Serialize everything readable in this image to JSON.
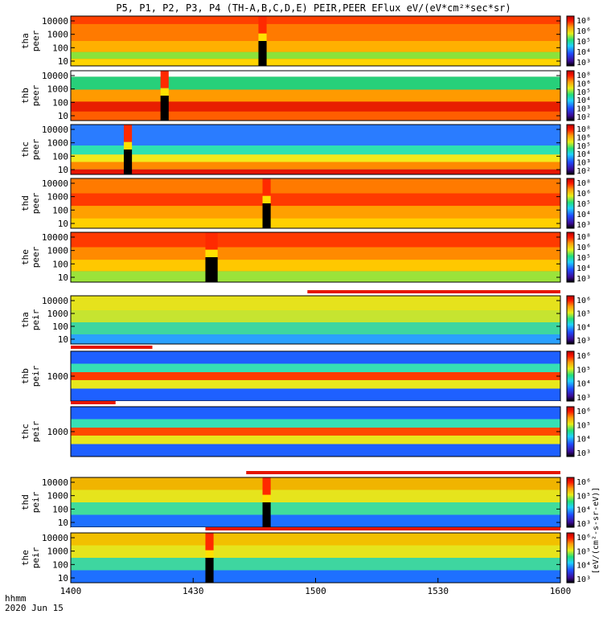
{
  "title": "P5, P1, P2, P3, P4 (TH-A,B,C,D,E) PEIR,PEER EFlux eV/(eV*cm²*sec*sr)",
  "footer": {
    "label_line1": "hhmm",
    "label_line2": "2020 Jun 15"
  },
  "colorbar_label": "[eV/(cm²-s-sr-eV)]",
  "colors": {
    "low": "#000000",
    "c1": "#3b0b96",
    "c2": "#1f4bff",
    "c3": "#1fd1ff",
    "c4": "#22e07a",
    "c5": "#e8ef17",
    "c6": "#ff9c0a",
    "c7": "#ff1a00",
    "high": "#b80000"
  },
  "chart_data": {
    "type": "heatmap",
    "x_axis": {
      "ticks": [
        "1400",
        "1430",
        "1500",
        "1530",
        "1600"
      ],
      "range_minutes": [
        0,
        120
      ]
    },
    "panels": [
      {
        "id": "tha-peer",
        "ylabel": [
          "tha",
          "peer"
        ],
        "y_log": true,
        "y_ticks": [
          "10000",
          "1000",
          "100",
          "10"
        ],
        "cbar_ticks": [
          "10⁸",
          "10⁶",
          "10⁵",
          "10⁴",
          "10³"
        ],
        "bg": "#ff7a00",
        "bands": [
          {
            "from": 0.0,
            "to": 0.16,
            "color": "#ff4000"
          },
          {
            "from": 0.5,
            "to": 0.72,
            "color": "#ffb000"
          },
          {
            "from": 0.72,
            "to": 0.86,
            "color": "#8be23a"
          },
          {
            "from": 0.86,
            "to": 1.0,
            "color": "#ffd400"
          }
        ],
        "gaps": [
          {
            "start": 46,
            "end": 48
          }
        ],
        "top_bar": null
      },
      {
        "id": "thb-peer",
        "ylabel": [
          "thb",
          "peer"
        ],
        "y_log": true,
        "y_ticks": [
          "10000",
          "1000",
          "100",
          "10"
        ],
        "cbar_ticks": [
          "10⁸",
          "10⁶",
          "10⁵",
          "10⁴",
          "10³",
          "10²"
        ],
        "bg": "#ff6a00",
        "bands": [
          {
            "from": 0.0,
            "to": 0.12,
            "color": "#ffffff"
          },
          {
            "from": 0.12,
            "to": 0.38,
            "color": "#27d07a"
          },
          {
            "from": 0.38,
            "to": 0.62,
            "color": "#ff9a00"
          },
          {
            "from": 0.62,
            "to": 0.82,
            "color": "#e81e00"
          },
          {
            "from": 0.82,
            "to": 1.0,
            "color": "#ff5e00"
          }
        ],
        "gaps": [
          {
            "start": 22,
            "end": 24
          }
        ],
        "top_bar": null
      },
      {
        "id": "thc-peer",
        "ylabel": [
          "thc",
          "peer"
        ],
        "y_log": true,
        "y_ticks": [
          "10000",
          "1000",
          "100",
          "10"
        ],
        "cbar_ticks": [
          "10⁸",
          "10⁶",
          "10⁵",
          "10⁴",
          "10³",
          "10²"
        ],
        "bg": "#1e8cff",
        "bands": [
          {
            "from": 0.0,
            "to": 0.42,
            "color": "#2a7cff"
          },
          {
            "from": 0.42,
            "to": 0.6,
            "color": "#2ee2b0"
          },
          {
            "from": 0.6,
            "to": 0.75,
            "color": "#f2ea1c"
          },
          {
            "from": 0.75,
            "to": 0.9,
            "color": "#ff8a00"
          },
          {
            "from": 0.9,
            "to": 1.0,
            "color": "#e51600"
          }
        ],
        "gaps": [
          {
            "start": 13,
            "end": 15
          }
        ],
        "top_bar": null
      },
      {
        "id": "thd-peer",
        "ylabel": [
          "thd",
          "peer"
        ],
        "y_log": true,
        "y_ticks": [
          "10000",
          "1000",
          "100",
          "10"
        ],
        "cbar_ticks": [
          "10⁸",
          "10⁶",
          "10⁵",
          "10⁴",
          "10³"
        ],
        "bg": "#ff4a00",
        "bands": [
          {
            "from": 0.0,
            "to": 0.3,
            "color": "#ff7a00"
          },
          {
            "from": 0.3,
            "to": 0.55,
            "color": "#ff3a00"
          },
          {
            "from": 0.55,
            "to": 0.8,
            "color": "#ffa000"
          },
          {
            "from": 0.8,
            "to": 1.0,
            "color": "#ffd000"
          }
        ],
        "gaps": [
          {
            "start": 47,
            "end": 49
          }
        ],
        "top_bar": null
      },
      {
        "id": "the-peer",
        "ylabel": [
          "the",
          "peer"
        ],
        "y_log": true,
        "y_ticks": [
          "10000",
          "1000",
          "100",
          "10"
        ],
        "cbar_ticks": [
          "10⁸",
          "10⁶",
          "10⁵",
          "10⁴",
          "10³"
        ],
        "bg": "#ff6000",
        "bands": [
          {
            "from": 0.0,
            "to": 0.3,
            "color": "#ff3a00"
          },
          {
            "from": 0.3,
            "to": 0.55,
            "color": "#ff8a00"
          },
          {
            "from": 0.55,
            "to": 0.78,
            "color": "#ffc800"
          },
          {
            "from": 0.78,
            "to": 1.0,
            "color": "#9be33a"
          }
        ],
        "gaps": [
          {
            "start": 33,
            "end": 36
          }
        ],
        "top_bar": null
      },
      {
        "id": "tha-peir",
        "ylabel": [
          "tha",
          "peir"
        ],
        "y_log": true,
        "y_ticks": [
          "10000",
          "1000",
          "100",
          "10"
        ],
        "cbar_ticks": [
          "10⁶",
          "10⁵",
          "10⁴",
          "10³"
        ],
        "bg": "#b6e23a",
        "bands": [
          {
            "from": 0.0,
            "to": 0.3,
            "color": "#e6e21c"
          },
          {
            "from": 0.3,
            "to": 0.55,
            "color": "#c6e430"
          },
          {
            "from": 0.55,
            "to": 0.8,
            "color": "#3ed6a0"
          },
          {
            "from": 0.8,
            "to": 1.0,
            "color": "#2aa0ff"
          }
        ],
        "gaps": [],
        "top_bar": {
          "segments": [
            {
              "start": 0,
              "end": 58,
              "color": "#ffffff"
            },
            {
              "start": 58,
              "end": 120,
              "color": "#e51600"
            }
          ]
        }
      },
      {
        "id": "thb-peir",
        "ylabel": [
          "thb",
          "peir"
        ],
        "y_log": true,
        "y_ticks": [
          "1000"
        ],
        "cbar_ticks": [
          "10⁶",
          "10⁵",
          "10⁴",
          "10³"
        ],
        "bg": "#2ad6a0",
        "bands": [
          {
            "from": 0.0,
            "to": 0.25,
            "color": "#1e60ff"
          },
          {
            "from": 0.25,
            "to": 0.42,
            "color": "#36e0b4"
          },
          {
            "from": 0.42,
            "to": 0.58,
            "color": "#ff3a00"
          },
          {
            "from": 0.58,
            "to": 0.75,
            "color": "#e8e81c"
          },
          {
            "from": 0.75,
            "to": 1.0,
            "color": "#1e60ff"
          }
        ],
        "gaps": [],
        "top_bar": {
          "segments": [
            {
              "start": 0,
              "end": 20,
              "color": "#e51600"
            },
            {
              "start": 20,
              "end": 120,
              "color": "#ffffff"
            }
          ]
        }
      },
      {
        "id": "thc-peir",
        "ylabel": [
          "thc",
          "peir"
        ],
        "y_log": true,
        "y_ticks": [
          "1000"
        ],
        "cbar_ticks": [
          "10⁶",
          "10⁵",
          "10⁴",
          "10³"
        ],
        "bg": "#2ad6a0",
        "bands": [
          {
            "from": 0.0,
            "to": 0.25,
            "color": "#1e60ff"
          },
          {
            "from": 0.25,
            "to": 0.42,
            "color": "#36e0b4"
          },
          {
            "from": 0.42,
            "to": 0.58,
            "color": "#ff4a00"
          },
          {
            "from": 0.58,
            "to": 0.75,
            "color": "#e8e81c"
          },
          {
            "from": 0.75,
            "to": 1.0,
            "color": "#1e60ff"
          }
        ],
        "gaps": [],
        "top_bar": {
          "segments": [
            {
              "start": 0,
              "end": 11,
              "color": "#e51600"
            },
            {
              "start": 11,
              "end": 120,
              "color": "#ffffff"
            }
          ]
        }
      },
      {
        "id": "thd-peir",
        "ylabel": [
          "thd",
          "peir"
        ],
        "y_log": true,
        "y_ticks": [
          "10000",
          "1000",
          "100",
          "10"
        ],
        "cbar_ticks": [
          "10⁶",
          "10⁵",
          "10⁴",
          "10³"
        ],
        "bg": "#c2e236",
        "bands": [
          {
            "from": 0.0,
            "to": 0.25,
            "color": "#f0b400"
          },
          {
            "from": 0.25,
            "to": 0.5,
            "color": "#e6e41c"
          },
          {
            "from": 0.5,
            "to": 0.75,
            "color": "#40dc9c"
          },
          {
            "from": 0.75,
            "to": 1.0,
            "color": "#1e70ff"
          }
        ],
        "gaps": [
          {
            "start": 47,
            "end": 49
          }
        ],
        "top_bar": {
          "segments": [
            {
              "start": 0,
              "end": 43,
              "color": "#ffffff"
            },
            {
              "start": 43,
              "end": 120,
              "color": "#e51600"
            }
          ]
        }
      },
      {
        "id": "the-peir",
        "ylabel": [
          "the",
          "peir"
        ],
        "y_log": true,
        "y_ticks": [
          "10000",
          "1000",
          "100",
          "10"
        ],
        "cbar_ticks": [
          "10⁶",
          "10⁵",
          "10⁴",
          "10³"
        ],
        "bg": "#c8e234",
        "bands": [
          {
            "from": 0.0,
            "to": 0.25,
            "color": "#f2c000"
          },
          {
            "from": 0.25,
            "to": 0.5,
            "color": "#e6e41c"
          },
          {
            "from": 0.5,
            "to": 0.75,
            "color": "#3ed6a0"
          },
          {
            "from": 0.75,
            "to": 1.0,
            "color": "#1e70ff"
          }
        ],
        "gaps": [
          {
            "start": 33,
            "end": 35
          }
        ],
        "top_bar": {
          "segments": [
            {
              "start": 0,
              "end": 33,
              "color": "#ffffff"
            },
            {
              "start": 33,
              "end": 120,
              "color": "#e51600"
            }
          ]
        }
      }
    ]
  }
}
